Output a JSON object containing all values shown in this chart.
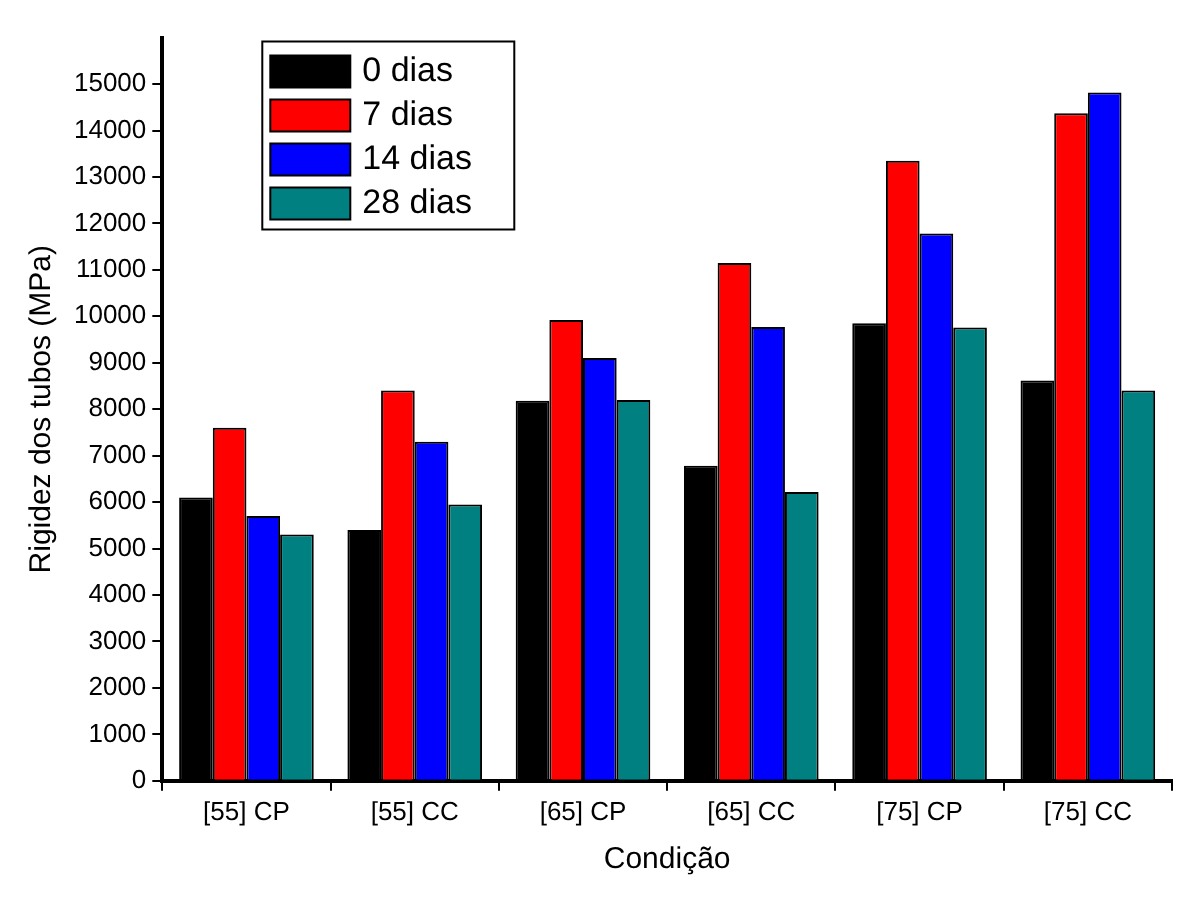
{
  "chart_data": {
    "type": "bar",
    "xlabel": "Condição",
    "ylabel": "Rigidez dos tubos (MPa)",
    "categories": [
      "[55] CP",
      "[55] CC",
      "[65] CP",
      "[65] CC",
      "[75] CP",
      "[75] CC"
    ],
    "series": [
      {
        "name": "0 dias",
        "color": "#000000",
        "values": [
          6100,
          5400,
          8180,
          6780,
          9850,
          8620
        ]
      },
      {
        "name": "7 dias",
        "color": "#ff0000",
        "values": [
          7600,
          8400,
          9920,
          11150,
          13350,
          14370
        ]
      },
      {
        "name": "14 dias",
        "color": "#0000ff",
        "values": [
          5700,
          7300,
          9100,
          9770,
          11780,
          14820
        ]
      },
      {
        "name": "28 dias",
        "color": "#008080",
        "values": [
          5300,
          5950,
          8200,
          6220,
          9760,
          8400
        ]
      }
    ],
    "ylim": [
      0,
      16000
    ],
    "yticks": [
      0,
      1000,
      2000,
      3000,
      4000,
      5000,
      6000,
      7000,
      8000,
      9000,
      10000,
      11000,
      12000,
      13000,
      14000,
      15000
    ],
    "grid": false,
    "legend": "top left"
  }
}
